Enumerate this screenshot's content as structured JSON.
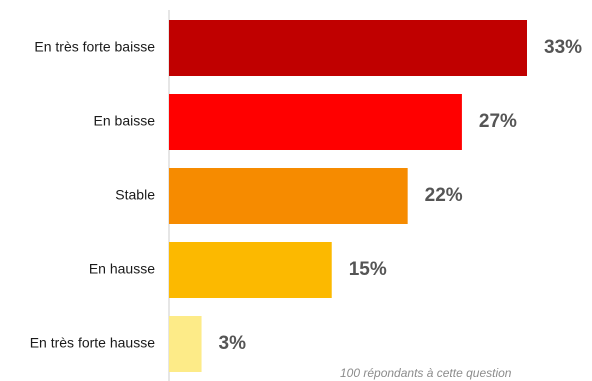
{
  "chart_data": {
    "type": "bar",
    "orientation": "horizontal",
    "categories": [
      "En très forte baisse",
      "En baisse",
      "Stable",
      "En hausse",
      "En très forte hausse"
    ],
    "values": [
      33,
      27,
      22,
      15,
      3
    ],
    "value_labels": [
      "33%",
      "27%",
      "22%",
      "15%",
      "3%"
    ],
    "colors": [
      "#c00000",
      "#ff0000",
      "#f68b00",
      "#fcb900",
      "#fdeb88"
    ],
    "axis_color": "#cccccc",
    "xlim": [
      0,
      40
    ],
    "grid": false,
    "legend": "none",
    "note": "100 répondants à cette question"
  }
}
